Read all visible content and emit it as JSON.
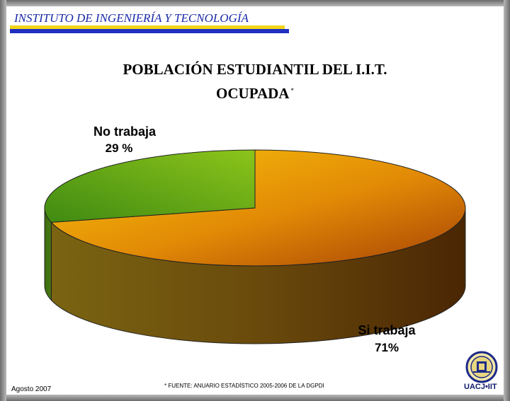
{
  "header": {
    "institute": "INSTITUTO DE INGENIERÍA Y TECNOLOGÍA"
  },
  "title": {
    "line1": "POBLACIÓN ESTUDIANTIL DEL I.I.T.",
    "line2": "OCUPADA",
    "marker": "*"
  },
  "chart_data": {
    "type": "pie",
    "style": "3d",
    "slices": [
      {
        "label": "Si trabaja",
        "value": 71,
        "value_label": "71%",
        "color": "#e8a008"
      },
      {
        "label": "No trabaja",
        "value": 29,
        "value_label": "29 %",
        "color": "#5caa18"
      }
    ],
    "legend": "none"
  },
  "footer": {
    "date": "Agosto 2007",
    "source": "* FUENTE: ANUARIO ESTADÍSTICO 2005-2006 DE LA DGPDI",
    "logo_text": "UACJ•IIT"
  },
  "colors": {
    "institute_text": "#1a2aa8",
    "institute_bar_blue": "#1f2fc2",
    "institute_bar_yellow": "#f2d418"
  }
}
